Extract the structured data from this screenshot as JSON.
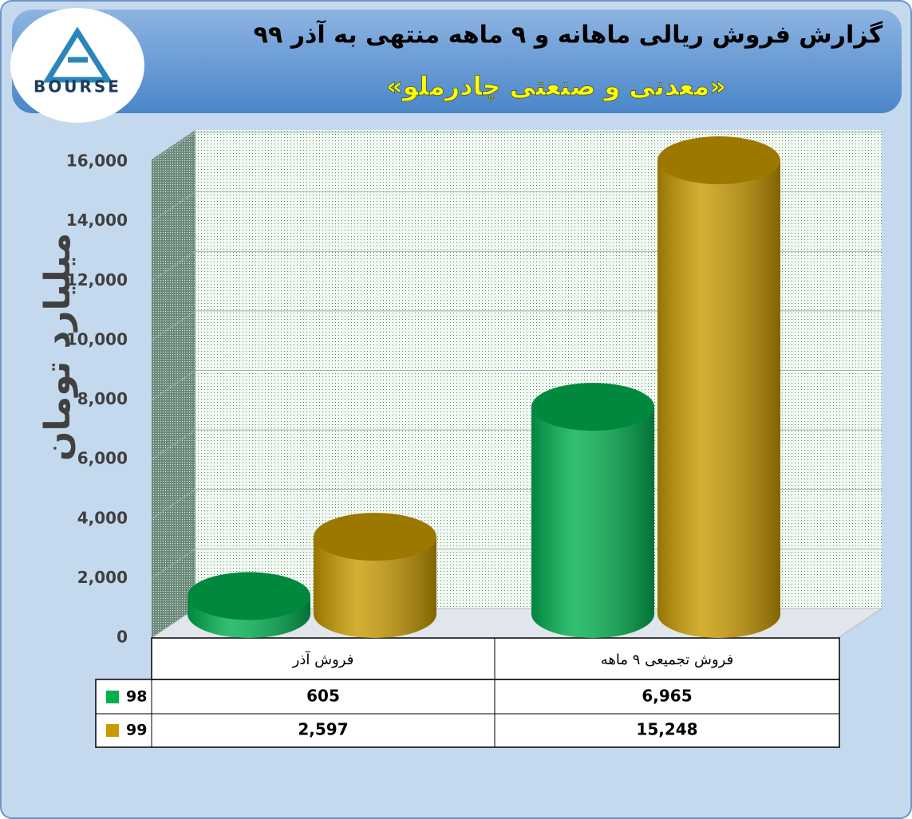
{
  "logo": {
    "text": "BOURSE"
  },
  "chart_data": {
    "type": "bar",
    "title": "گزارش فروش ریالی ماهانه و ۹ ماهه منتهی به آذر ۹۹",
    "subtitle": "«معدنی و صنعتی چادرملو»",
    "y_label": "میلیارد تومان",
    "categories": [
      "فروش آذر",
      "فروش تجمیعی ۹ ماهه"
    ],
    "series": [
      {
        "name": "98",
        "color": "#00b050",
        "values": [
          605,
          6965
        ],
        "value_labels": [
          "605",
          "6,965"
        ]
      },
      {
        "name": "99",
        "color": "#c89a00",
        "values": [
          2597,
          15248
        ],
        "value_labels": [
          "2,597",
          "15,248"
        ]
      }
    ],
    "ylim": [
      0,
      16000
    ],
    "yticks": [
      0,
      {
        "value": 2000,
        "label": "2,000"
      },
      {
        "value": 4000,
        "label": "4,000"
      },
      {
        "value": 6000,
        "label": "6,000"
      },
      {
        "value": 8000,
        "label": "8,000"
      },
      {
        "value": 10000,
        "label": "10,000"
      },
      {
        "value": 12000,
        "label": "12,000"
      },
      {
        "value": 14000,
        "label": "14,000"
      },
      {
        "value": 16000,
        "label": "16,000"
      }
    ],
    "grid": true
  }
}
